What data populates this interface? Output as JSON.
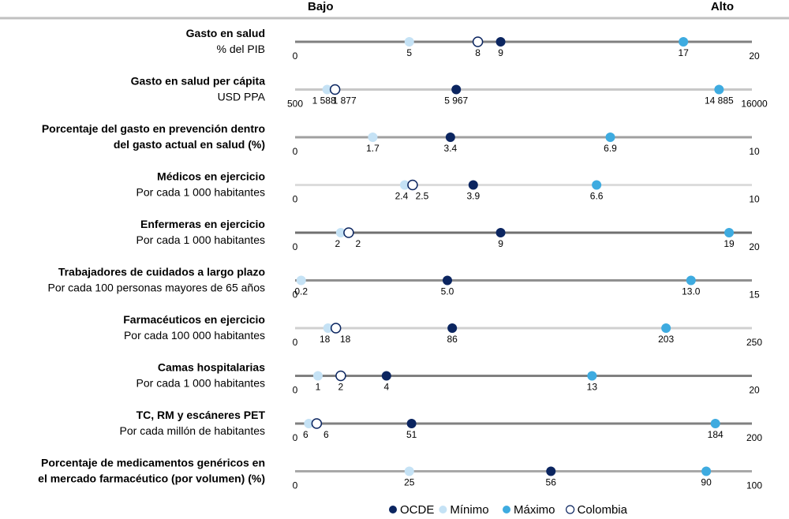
{
  "chart_data": {
    "type": "scatter",
    "subtype": "dot-plot",
    "header": {
      "low_label": "Bajo",
      "high_label": "Alto"
    },
    "legend": {
      "placement": "bottom",
      "entries": [
        {
          "key": "ocde",
          "label": "OCDE",
          "color": "#0b2560",
          "fill": true
        },
        {
          "key": "min",
          "label": "Mínimo",
          "color": "#c5e2f5",
          "fill": true
        },
        {
          "key": "max",
          "label": "Máximo",
          "color": "#3eabe0",
          "fill": true
        },
        {
          "key": "col",
          "label": "Colombia",
          "color": "#0b2560",
          "fill": false
        }
      ]
    },
    "rows": [
      {
        "title": [
          "Gasto en salud"
        ],
        "subtitle": [
          "% del PIB"
        ],
        "axis_min": 0,
        "axis_max": 20,
        "axis_min_label": "0",
        "axis_max_label": "20",
        "line_color": "#808080",
        "points": [
          {
            "series": "min",
            "value": 5,
            "label": "5"
          },
          {
            "series": "col",
            "value": 8,
            "label": "8"
          },
          {
            "series": "ocde",
            "value": 9,
            "label": "9"
          },
          {
            "series": "max",
            "value": 17,
            "label": "17"
          }
        ]
      },
      {
        "title": [
          "Gasto en salud per cápita"
        ],
        "subtitle": [
          "USD PPA"
        ],
        "axis_min": 500,
        "axis_max": 16000,
        "axis_min_label": "500",
        "axis_max_label": "16000",
        "line_color": "#c8c8c8",
        "points": [
          {
            "series": "min",
            "value": 1588,
            "label": "1 588"
          },
          {
            "series": "col",
            "value": 1877,
            "label": "1 877"
          },
          {
            "series": "ocde",
            "value": 5967,
            "label": "5 967"
          },
          {
            "series": "max",
            "value": 14885,
            "label": "14 885"
          }
        ]
      },
      {
        "title": [
          "Porcentaje del gasto en prevención dentro",
          "del gasto actual en salud (%)"
        ],
        "subtitle": [],
        "axis_min": 0,
        "axis_max": 10,
        "axis_min_label": "0",
        "axis_max_label": "10",
        "line_color": "#a0a0a0",
        "points": [
          {
            "series": "min",
            "value": 1.7,
            "label": "1.7"
          },
          {
            "series": "ocde",
            "value": 3.4,
            "label": "3.4"
          },
          {
            "series": "max",
            "value": 6.9,
            "label": "6.9"
          }
        ]
      },
      {
        "title": [
          "Médicos en ejercicio"
        ],
        "subtitle": [
          "Por cada 1 000 habitantes"
        ],
        "axis_min": 0,
        "axis_max": 10,
        "axis_min_label": "0",
        "axis_max_label": "10",
        "line_color": "#dcdcdc",
        "points": [
          {
            "series": "min",
            "value": 2.4,
            "label": "2.4"
          },
          {
            "series": "col",
            "value": 2.5,
            "label": "2.5"
          },
          {
            "series": "ocde",
            "value": 3.9,
            "label": "3.9"
          },
          {
            "series": "max",
            "value": 6.6,
            "label": "6.6"
          }
        ]
      },
      {
        "title": [
          "Enfermeras en ejercicio"
        ],
        "subtitle": [
          "Por cada 1 000 habitantes"
        ],
        "axis_min": 0,
        "axis_max": 20,
        "axis_min_label": "0",
        "axis_max_label": "20",
        "line_color": "#707070",
        "points": [
          {
            "series": "min",
            "value": 2,
            "label": "2"
          },
          {
            "series": "col",
            "value": 2,
            "label": "2"
          },
          {
            "series": "ocde",
            "value": 9,
            "label": "9"
          },
          {
            "series": "max",
            "value": 19,
            "label": "19"
          }
        ]
      },
      {
        "title": [
          "Trabajadores de cuidados a largo plazo"
        ],
        "subtitle": [
          "Por cada 100 personas mayores de 65 años"
        ],
        "axis_min": 0,
        "axis_max": 15,
        "axis_min_label": "0",
        "axis_max_label": "15",
        "line_color": "#909090",
        "points": [
          {
            "series": "min",
            "value": 0.2,
            "label": "0.2"
          },
          {
            "series": "ocde",
            "value": 5.0,
            "label": "5.0"
          },
          {
            "series": "max",
            "value": 13.0,
            "label": "13.0"
          }
        ]
      },
      {
        "title": [
          "Farmacéuticos en ejercicio"
        ],
        "subtitle": [
          "Por cada 100 000 habitantes"
        ],
        "axis_min": 0,
        "axis_max": 250,
        "axis_min_label": "0",
        "axis_max_label": "250",
        "line_color": "#d0d0d0",
        "points": [
          {
            "series": "min",
            "value": 18,
            "label": "18"
          },
          {
            "series": "col",
            "value": 18,
            "label": "18"
          },
          {
            "series": "ocde",
            "value": 86,
            "label": "86"
          },
          {
            "series": "max",
            "value": 203,
            "label": "203"
          }
        ]
      },
      {
        "title": [
          "Camas hospitalarias"
        ],
        "subtitle": [
          "Por cada 1 000 habitantes"
        ],
        "axis_min": 0,
        "axis_max": 20,
        "axis_min_label": "0",
        "axis_max_label": "20",
        "line_color": "#808080",
        "points": [
          {
            "series": "min",
            "value": 1,
            "label": "1"
          },
          {
            "series": "col",
            "value": 2,
            "label": "2"
          },
          {
            "series": "ocde",
            "value": 4,
            "label": "4"
          },
          {
            "series": "max",
            "value": 13,
            "label": "13"
          }
        ]
      },
      {
        "title": [
          "TC, RM y escáneres PET"
        ],
        "subtitle": [
          "Por cada millón de habitantes"
        ],
        "axis_min": 0,
        "axis_max": 200,
        "axis_min_label": "0",
        "axis_max_label": "200",
        "line_color": "#808080",
        "points": [
          {
            "series": "min",
            "value": 6,
            "label": "6"
          },
          {
            "series": "col",
            "value": 6,
            "label": "6"
          },
          {
            "series": "ocde",
            "value": 51,
            "label": "51"
          },
          {
            "series": "max",
            "value": 184,
            "label": "184"
          }
        ]
      },
      {
        "title": [
          "Porcentaje de medicamentos genéricos en",
          "el mercado farmacéutico (por volumen) (%)"
        ],
        "subtitle": [],
        "axis_min": 0,
        "axis_max": 100,
        "axis_min_label": "0",
        "axis_max_label": "100",
        "line_color": "#a8a8a8",
        "points": [
          {
            "series": "min",
            "value": 25,
            "label": "25"
          },
          {
            "series": "ocde",
            "value": 56,
            "label": "56"
          },
          {
            "series": "max",
            "value": 90,
            "label": "90"
          }
        ]
      }
    ]
  }
}
